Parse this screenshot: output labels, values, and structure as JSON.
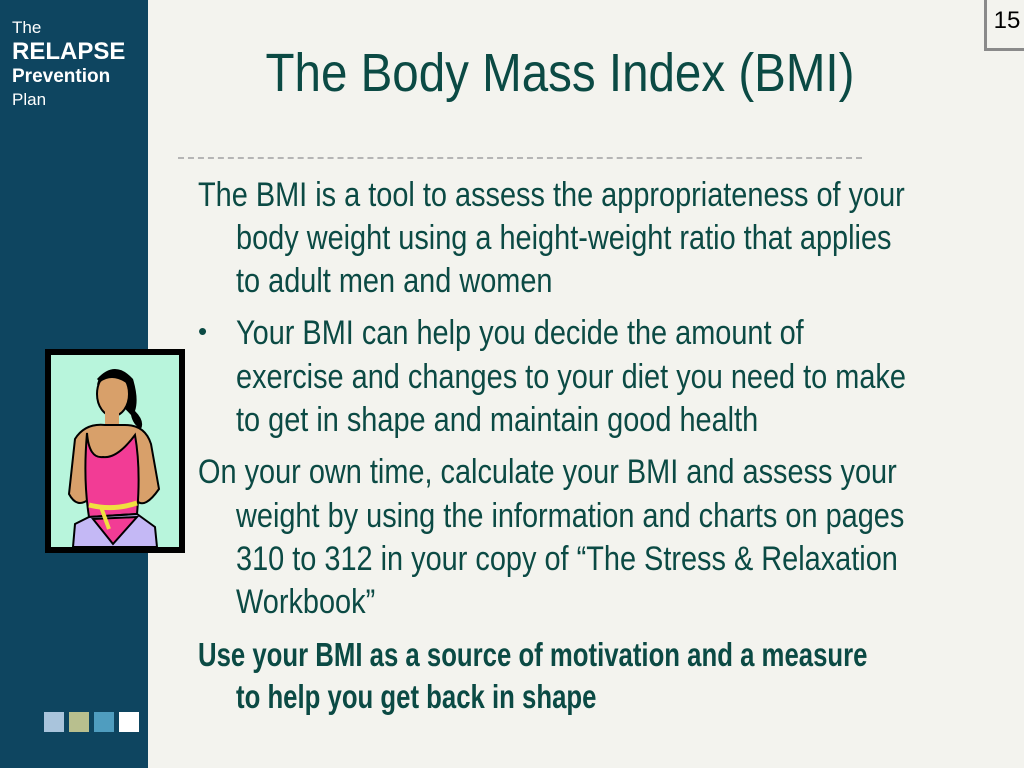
{
  "brand": {
    "line1": "The",
    "line2": "RELAPSE",
    "line3": "Prevention",
    "line4": "Plan"
  },
  "slide_number": "15",
  "title": "The Body Mass Index (BMI)",
  "body": {
    "p1": [
      "The BMI is a tool to assess the appropriateness of your",
      "body weight using a height-weight ratio that applies",
      "to adult men and women"
    ],
    "bullet": "•",
    "p2": [
      "Your BMI can help you decide the amount of",
      "exercise and changes to your diet you need to make",
      "to get in shape and maintain good health"
    ],
    "p3": [
      "On your own time, calculate your BMI and assess your",
      "weight by using the information and charts on pages",
      "310 to 312 in your copy of “The Stress & Relaxation",
      "Workbook”"
    ],
    "p4": [
      "Use your BMI as a source of motivation and a measure",
      "to help you get back in shape"
    ]
  },
  "colors": {
    "sidebar": "#0e4560",
    "text": "#0b4a44",
    "squares": [
      "#a9c4dc",
      "#b8bf8e",
      "#4f9dbf",
      "#ffffff"
    ]
  },
  "illustration": "woman-measuring-waist-clipart"
}
